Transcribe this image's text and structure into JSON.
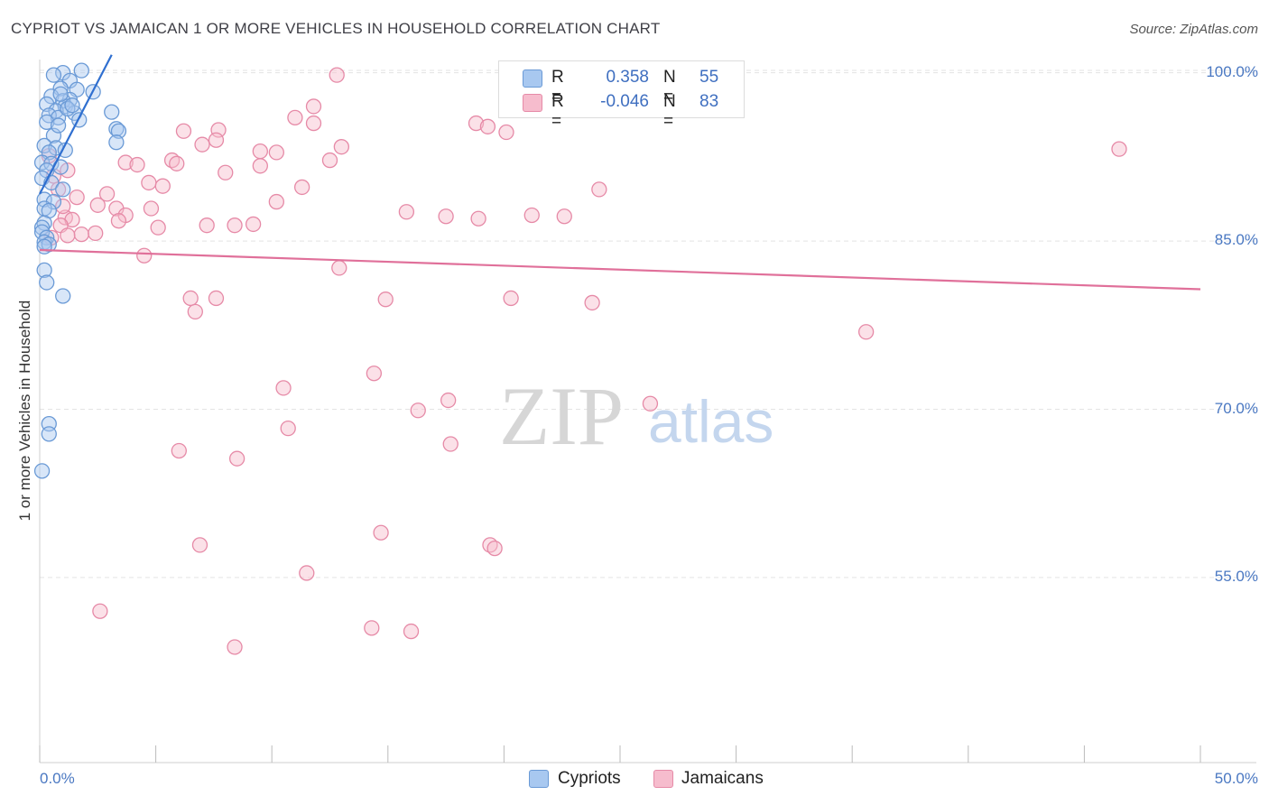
{
  "header": {
    "title": "CYPRIOT VS JAMAICAN 1 OR MORE VEHICLES IN HOUSEHOLD CORRELATION CHART",
    "source": "Source: ZipAtlas.com"
  },
  "legend": {
    "r_label": "R =",
    "n_label": "N =",
    "series": [
      {
        "name": "Cypriots",
        "r": "0.358",
        "n": "55",
        "fill": "#a8c8f0",
        "stroke": "#6a9ad6"
      },
      {
        "name": "Jamaicans",
        "r": "-0.046",
        "n": "83",
        "fill": "#f6bccd",
        "stroke": "#e68aa7"
      }
    ]
  },
  "watermark": {
    "part1": "ZIP",
    "part2": "atlas"
  },
  "colors": {
    "blue": "#4a78c2",
    "blue_line": "#2f6fd0",
    "pink_line": "#e0709a",
    "grid": "#e3e3e3"
  },
  "chart_data": {
    "type": "scatter",
    "title": "CYPRIOT VS JAMAICAN 1 OR MORE VEHICLES IN HOUSEHOLD CORRELATION CHART",
    "xlabel": "",
    "ylabel": "1 or more Vehicles in Household",
    "xlim": [
      0,
      50
    ],
    "ylim": [
      38.5,
      101.5
    ],
    "x_tick_labels": [
      "0.0%",
      "50.0%"
    ],
    "y_ticks": [
      {
        "value": 100,
        "label": "100.0%"
      },
      {
        "value": 85,
        "label": "85.0%"
      },
      {
        "value": 70,
        "label": "70.0%"
      },
      {
        "value": 55,
        "label": "55.0%"
      }
    ],
    "grid": true,
    "series": [
      {
        "name": "Cypriots",
        "r": 0.358,
        "n": 55,
        "trend": {
          "x": [
            0.0,
            3.1
          ],
          "y": [
            89.2,
            101.6
          ]
        },
        "points": [
          [
            1.0,
            100.0
          ],
          [
            1.8,
            100.2
          ],
          [
            0.6,
            99.8
          ],
          [
            1.3,
            99.3
          ],
          [
            0.9,
            98.6
          ],
          [
            1.6,
            98.5
          ],
          [
            2.3,
            98.3
          ],
          [
            0.5,
            97.9
          ],
          [
            1.3,
            97.6
          ],
          [
            1.0,
            97.5
          ],
          [
            0.3,
            97.2
          ],
          [
            1.1,
            97.0
          ],
          [
            0.7,
            96.6
          ],
          [
            3.1,
            96.5
          ],
          [
            1.5,
            96.4
          ],
          [
            0.4,
            96.2
          ],
          [
            0.8,
            96.0
          ],
          [
            1.7,
            95.8
          ],
          [
            0.3,
            95.6
          ],
          [
            3.3,
            95.0
          ],
          [
            3.4,
            94.8
          ],
          [
            0.6,
            94.4
          ],
          [
            3.3,
            93.8
          ],
          [
            0.2,
            93.5
          ],
          [
            0.7,
            93.3
          ],
          [
            1.1,
            93.1
          ],
          [
            0.4,
            92.9
          ],
          [
            0.1,
            92.0
          ],
          [
            0.5,
            91.9
          ],
          [
            0.9,
            91.6
          ],
          [
            0.3,
            91.3
          ],
          [
            0.1,
            90.6
          ],
          [
            0.5,
            90.2
          ],
          [
            1.0,
            89.6
          ],
          [
            0.2,
            88.7
          ],
          [
            0.6,
            88.5
          ],
          [
            0.2,
            87.9
          ],
          [
            0.4,
            87.7
          ],
          [
            0.2,
            86.6
          ],
          [
            0.1,
            86.2
          ],
          [
            0.1,
            85.8
          ],
          [
            0.3,
            85.3
          ],
          [
            0.2,
            84.9
          ],
          [
            0.4,
            84.7
          ],
          [
            0.2,
            84.5
          ],
          [
            0.2,
            82.4
          ],
          [
            0.3,
            81.3
          ],
          [
            1.0,
            80.1
          ],
          [
            0.4,
            68.7
          ],
          [
            0.4,
            67.8
          ],
          [
            0.1,
            64.5
          ],
          [
            0.8,
            95.3
          ],
          [
            1.2,
            96.8
          ],
          [
            0.9,
            98.1
          ],
          [
            1.4,
            97.1
          ]
        ]
      },
      {
        "name": "Jamaicans",
        "r": -0.046,
        "n": 83,
        "trend": {
          "x": [
            0.0,
            50.0
          ],
          "y": [
            84.2,
            80.7
          ]
        },
        "points": [
          [
            27.8,
            100.0
          ],
          [
            12.8,
            99.8
          ],
          [
            11.8,
            97.0
          ],
          [
            11.0,
            96.0
          ],
          [
            11.8,
            95.5
          ],
          [
            18.8,
            95.5
          ],
          [
            19.3,
            95.2
          ],
          [
            20.1,
            94.7
          ],
          [
            6.2,
            94.8
          ],
          [
            7.7,
            94.9
          ],
          [
            7.6,
            94.0
          ],
          [
            7.0,
            93.6
          ],
          [
            13.0,
            93.4
          ],
          [
            9.5,
            93.0
          ],
          [
            10.2,
            92.9
          ],
          [
            46.5,
            93.2
          ],
          [
            5.7,
            92.2
          ],
          [
            5.9,
            91.9
          ],
          [
            3.7,
            92.0
          ],
          [
            4.2,
            91.8
          ],
          [
            9.5,
            91.7
          ],
          [
            12.5,
            92.2
          ],
          [
            8.0,
            91.1
          ],
          [
            1.2,
            91.3
          ],
          [
            0.6,
            90.8
          ],
          [
            4.7,
            90.2
          ],
          [
            5.3,
            89.9
          ],
          [
            11.3,
            89.8
          ],
          [
            24.1,
            89.6
          ],
          [
            0.8,
            89.6
          ],
          [
            2.9,
            89.2
          ],
          [
            1.6,
            88.9
          ],
          [
            10.2,
            88.5
          ],
          [
            2.5,
            88.2
          ],
          [
            3.3,
            87.9
          ],
          [
            4.8,
            87.9
          ],
          [
            15.8,
            87.6
          ],
          [
            17.5,
            87.2
          ],
          [
            18.9,
            87.0
          ],
          [
            21.2,
            87.3
          ],
          [
            22.6,
            87.2
          ],
          [
            3.7,
            87.3
          ],
          [
            1.1,
            87.1
          ],
          [
            1.4,
            86.9
          ],
          [
            0.9,
            86.4
          ],
          [
            5.1,
            86.2
          ],
          [
            7.2,
            86.4
          ],
          [
            8.4,
            86.4
          ],
          [
            9.2,
            86.5
          ],
          [
            0.5,
            85.3
          ],
          [
            1.8,
            85.6
          ],
          [
            2.4,
            85.7
          ],
          [
            4.5,
            83.7
          ],
          [
            12.9,
            82.6
          ],
          [
            6.5,
            79.9
          ],
          [
            7.6,
            79.9
          ],
          [
            14.9,
            79.8
          ],
          [
            20.3,
            79.9
          ],
          [
            23.8,
            79.5
          ],
          [
            6.7,
            78.7
          ],
          [
            35.6,
            76.9
          ],
          [
            14.4,
            73.2
          ],
          [
            10.5,
            71.9
          ],
          [
            17.6,
            70.8
          ],
          [
            16.3,
            69.9
          ],
          [
            26.3,
            70.5
          ],
          [
            10.7,
            68.3
          ],
          [
            17.7,
            66.9
          ],
          [
            6.0,
            66.3
          ],
          [
            8.5,
            65.6
          ],
          [
            14.7,
            59.0
          ],
          [
            6.9,
            57.9
          ],
          [
            19.4,
            57.9
          ],
          [
            19.6,
            57.6
          ],
          [
            11.5,
            55.4
          ],
          [
            2.6,
            52.0
          ],
          [
            14.3,
            50.5
          ],
          [
            16.0,
            50.2
          ],
          [
            8.4,
            48.8
          ],
          [
            1.0,
            88.1
          ],
          [
            0.4,
            92.6
          ],
          [
            1.2,
            85.5
          ],
          [
            3.4,
            86.8
          ]
        ]
      }
    ]
  }
}
